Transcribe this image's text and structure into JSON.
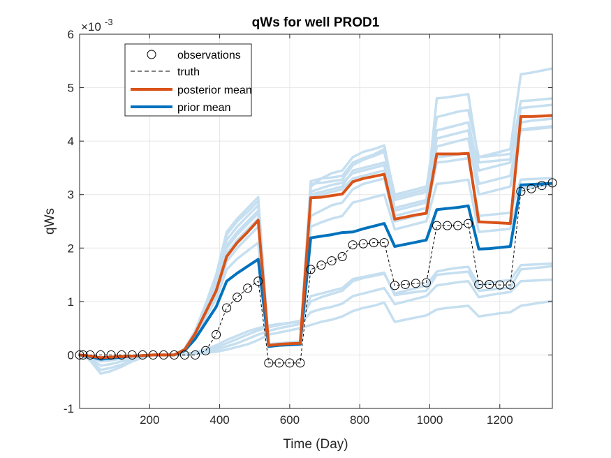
{
  "chart_data": {
    "type": "line",
    "title": "qWs for well PROD1",
    "xlabel": "Time (Day)",
    "ylabel": "qWs",
    "y_exponent_label": "×10",
    "y_exponent_power": "-3",
    "xlim": [
      0,
      1350
    ],
    "ylim": [
      -1,
      6
    ],
    "xticks": [
      200,
      400,
      600,
      800,
      1000,
      1200
    ],
    "yticks": [
      -1,
      0,
      1,
      2,
      3,
      4,
      5,
      6
    ],
    "grid": true,
    "legend_position": "top-left",
    "colors": {
      "ensemble": "#c6dff0",
      "posterior": "#d95319",
      "prior": "#0072bd",
      "observations": "#000000",
      "truth": "#000000"
    },
    "legend": [
      {
        "key": "observations",
        "label": "observations",
        "style": "marker"
      },
      {
        "key": "truth",
        "label": "truth",
        "style": "dashed"
      },
      {
        "key": "posterior",
        "label": "posterior mean",
        "style": "posterior"
      },
      {
        "key": "prior",
        "label": "prior mean",
        "style": "prior"
      }
    ],
    "x": [
      0,
      30,
      60,
      90,
      120,
      150,
      180,
      210,
      240,
      270,
      300,
      330,
      360,
      390,
      420,
      450,
      480,
      510,
      540,
      570,
      600,
      630,
      660,
      690,
      720,
      750,
      780,
      810,
      840,
      870,
      900,
      930,
      960,
      990,
      1020,
      1050,
      1080,
      1110,
      1140,
      1170,
      1200,
      1230,
      1260,
      1290,
      1320,
      1350
    ],
    "observations": {
      "x": [
        0,
        10,
        30,
        60,
        90,
        120,
        150,
        180,
        210,
        240,
        270,
        300,
        330,
        360,
        390,
        420,
        450,
        480,
        510,
        540,
        570,
        600,
        630,
        660,
        690,
        720,
        750,
        780,
        810,
        840,
        870,
        900,
        930,
        960,
        990,
        1020,
        1050,
        1080,
        1110,
        1140,
        1170,
        1200,
        1230,
        1260,
        1290,
        1320,
        1350
      ],
      "y": [
        0,
        0,
        0,
        0,
        0,
        0,
        0,
        0,
        0,
        0,
        0,
        0,
        0,
        0.08,
        0.38,
        0.88,
        1.08,
        1.25,
        1.38,
        -0.15,
        -0.15,
        -0.15,
        -0.15,
        1.6,
        1.68,
        1.76,
        1.84,
        2.06,
        2.08,
        2.1,
        2.1,
        1.3,
        1.32,
        1.34,
        1.35,
        2.42,
        2.42,
        2.42,
        2.46,
        1.32,
        1.32,
        1.31,
        1.31,
        3.06,
        3.11,
        3.17,
        3.22
      ]
    },
    "truth": [
      0,
      0,
      0,
      0,
      0,
      0,
      0,
      0,
      0,
      0,
      0,
      0,
      0.08,
      0.38,
      0.88,
      1.08,
      1.25,
      1.38,
      -0.15,
      -0.15,
      -0.15,
      -0.15,
      1.6,
      1.68,
      1.76,
      1.84,
      2.06,
      2.08,
      2.1,
      2.1,
      1.3,
      1.32,
      1.34,
      1.35,
      2.42,
      2.42,
      2.42,
      2.46,
      1.32,
      1.32,
      1.31,
      1.31,
      3.06,
      3.11,
      3.17,
      3.22
    ],
    "posterior_mean": [
      0,
      -0.02,
      -0.05,
      -0.04,
      -0.03,
      -0.02,
      -0.01,
      0,
      0,
      0,
      0.1,
      0.4,
      0.8,
      1.2,
      1.84,
      2.1,
      2.3,
      2.52,
      0.18,
      0.2,
      0.21,
      0.22,
      2.94,
      2.95,
      2.98,
      3.01,
      3.24,
      3.3,
      3.34,
      3.38,
      2.54,
      2.58,
      2.62,
      2.65,
      3.76,
      3.76,
      3.76,
      3.77,
      2.49,
      2.48,
      2.47,
      2.46,
      4.46,
      4.46,
      4.47,
      4.48
    ],
    "prior_mean": [
      0,
      -0.03,
      -0.08,
      -0.06,
      -0.04,
      -0.02,
      -0.01,
      0,
      0,
      0,
      0.08,
      0.3,
      0.6,
      0.9,
      1.38,
      1.53,
      1.66,
      1.79,
      0.16,
      0.18,
      0.19,
      0.2,
      2.19,
      2.22,
      2.25,
      2.29,
      2.3,
      2.36,
      2.41,
      2.46,
      2.03,
      2.07,
      2.11,
      2.15,
      2.72,
      2.74,
      2.76,
      2.79,
      1.98,
      1.99,
      2.01,
      2.03,
      3.18,
      3.19,
      3.2,
      3.21
    ],
    "ensemble": [
      {
        "values": [
          0,
          -0.1,
          -0.35,
          -0.3,
          -0.22,
          -0.12,
          -0.05,
          0,
          0,
          0,
          0,
          0.02,
          0.04,
          0.06,
          0.1,
          0.15,
          0.2,
          0.28,
          0.38,
          0.42,
          0.46,
          0.5,
          0.56,
          0.62,
          0.66,
          0.72,
          0.82,
          0.88,
          0.92,
          0.98,
          0.62,
          0.66,
          0.7,
          0.74,
          0.85,
          0.88,
          0.9,
          0.92,
          0.72,
          0.75,
          0.78,
          0.8,
          0.92,
          0.95,
          0.98,
          1.01
        ]
      },
      {
        "values": [
          0,
          -0.08,
          -0.28,
          -0.24,
          -0.18,
          -0.1,
          -0.04,
          0,
          0,
          0,
          0.01,
          0.03,
          0.06,
          0.1,
          0.16,
          0.22,
          0.3,
          0.38,
          0.45,
          0.5,
          0.54,
          0.58,
          0.8,
          0.86,
          0.9,
          0.96,
          1.1,
          1.15,
          1.2,
          1.25,
          0.95,
          1.0,
          1.05,
          1.1,
          1.3,
          1.33,
          1.36,
          1.38,
          1.08,
          1.12,
          1.15,
          1.18,
          1.38,
          1.39,
          1.4,
          1.41
        ]
      },
      {
        "values": [
          0,
          -0.06,
          -0.2,
          -0.17,
          -0.12,
          -0.07,
          -0.03,
          0,
          0,
          0,
          0.01,
          0.04,
          0.08,
          0.14,
          0.22,
          0.3,
          0.38,
          0.46,
          0.52,
          0.56,
          0.6,
          0.64,
          1.0,
          1.08,
          1.14,
          1.2,
          1.38,
          1.44,
          1.48,
          1.52,
          1.15,
          1.2,
          1.25,
          1.3,
          1.56,
          1.6,
          1.63,
          1.65,
          1.3,
          1.35,
          1.38,
          1.4,
          1.68,
          1.69,
          1.7,
          1.71
        ]
      },
      {
        "values": [
          0,
          -0.04,
          -0.12,
          -0.1,
          -0.07,
          -0.04,
          -0.02,
          0,
          0,
          0,
          0.02,
          0.05,
          0.1,
          0.18,
          0.28,
          0.36,
          0.44,
          0.5,
          0.55,
          0.58,
          0.6,
          0.62,
          1.1,
          1.15,
          1.2,
          1.25,
          1.42,
          1.46,
          1.5,
          1.54,
          1.12,
          1.15,
          1.18,
          1.2,
          1.5,
          1.52,
          1.54,
          1.56,
          1.2,
          1.22,
          1.24,
          1.26,
          1.6,
          1.62,
          1.64,
          1.66
        ]
      },
      {
        "values": [
          0,
          -0.02,
          -0.06,
          -0.05,
          -0.03,
          -0.02,
          -0.01,
          0,
          0,
          0,
          0.12,
          0.45,
          0.95,
          1.5,
          2.3,
          2.55,
          2.75,
          2.95,
          0.2,
          0.22,
          0.24,
          0.25,
          3.15,
          3.3,
          3.4,
          3.45,
          3.7,
          3.8,
          3.85,
          3.92,
          2.95,
          3.0,
          3.05,
          3.1,
          4.45,
          4.5,
          4.55,
          4.58,
          3.7,
          3.75,
          3.8,
          3.85,
          5.25,
          5.28,
          5.32,
          5.36
        ]
      },
      {
        "values": [
          0,
          -0.02,
          -0.06,
          -0.05,
          -0.03,
          -0.02,
          -0.01,
          0,
          0,
          0,
          0.11,
          0.42,
          0.9,
          1.4,
          2.15,
          2.4,
          2.6,
          2.8,
          0.2,
          0.21,
          0.22,
          0.24,
          3.2,
          3.22,
          3.25,
          3.28,
          3.55,
          3.65,
          3.72,
          3.8,
          2.9,
          2.95,
          3.0,
          3.05,
          4.2,
          4.25,
          4.3,
          4.35,
          3.45,
          3.5,
          3.55,
          3.6,
          4.62,
          4.64,
          4.66,
          4.68
        ]
      },
      {
        "values": [
          0,
          -0.02,
          -0.06,
          -0.05,
          -0.03,
          -0.02,
          -0.01,
          0,
          0,
          0,
          0.1,
          0.4,
          0.85,
          1.3,
          2.0,
          2.25,
          2.45,
          2.65,
          0.19,
          0.2,
          0.21,
          0.23,
          3.0,
          3.05,
          3.1,
          3.15,
          3.45,
          3.5,
          3.55,
          3.6,
          2.75,
          2.8,
          2.85,
          2.9,
          4.05,
          4.1,
          4.15,
          4.2,
          3.2,
          3.25,
          3.3,
          3.35,
          4.35,
          4.38,
          4.4,
          4.42
        ]
      },
      {
        "values": [
          0,
          -0.02,
          -0.06,
          -0.05,
          -0.03,
          -0.02,
          -0.01,
          0,
          0,
          0,
          0.1,
          0.38,
          0.8,
          1.25,
          1.9,
          2.15,
          2.35,
          2.55,
          0.18,
          0.2,
          0.21,
          0.22,
          2.95,
          3.0,
          3.05,
          3.1,
          3.3,
          3.35,
          3.4,
          3.45,
          2.6,
          2.65,
          2.7,
          2.75,
          3.9,
          3.95,
          4.0,
          4.05,
          3.0,
          3.05,
          3.1,
          3.15,
          4.22,
          4.24,
          4.26,
          4.28
        ]
      },
      {
        "values": [
          0,
          -0.02,
          -0.06,
          -0.05,
          -0.03,
          -0.02,
          -0.01,
          0,
          0,
          0,
          0.1,
          0.36,
          0.75,
          1.15,
          1.75,
          2.0,
          2.2,
          2.4,
          0.18,
          0.19,
          0.2,
          0.22,
          2.6,
          2.7,
          2.8,
          2.85,
          3.1,
          3.2,
          3.25,
          3.3,
          2.5,
          2.55,
          2.6,
          2.65,
          3.6,
          3.62,
          3.65,
          3.68,
          2.6,
          2.62,
          2.64,
          2.66,
          3.28,
          3.29,
          3.3,
          3.31
        ]
      },
      {
        "values": [
          0,
          -0.02,
          -0.06,
          -0.05,
          -0.03,
          -0.02,
          -0.01,
          0,
          0,
          0,
          0.09,
          0.33,
          0.7,
          1.05,
          1.6,
          1.8,
          1.95,
          2.1,
          0.17,
          0.18,
          0.19,
          0.21,
          2.4,
          2.48,
          2.55,
          2.6,
          2.85,
          2.9,
          2.95,
          3.0,
          2.35,
          2.4,
          2.45,
          2.5,
          3.2,
          3.22,
          3.25,
          3.28,
          2.3,
          2.32,
          2.34,
          2.36,
          3.12,
          3.14,
          3.16,
          3.18
        ]
      },
      {
        "values": [
          0,
          -0.02,
          -0.06,
          -0.05,
          -0.03,
          -0.02,
          -0.01,
          0,
          0,
          0,
          0.11,
          0.44,
          0.92,
          1.45,
          2.25,
          2.5,
          2.68,
          2.88,
          0.19,
          0.21,
          0.23,
          0.24,
          3.05,
          3.12,
          3.18,
          3.22,
          3.4,
          3.45,
          3.5,
          3.55,
          2.7,
          2.75,
          2.8,
          2.85,
          4.8,
          4.82,
          4.85,
          4.88,
          3.6,
          3.62,
          3.64,
          3.66,
          4.75,
          4.76,
          4.78,
          4.8
        ]
      },
      {
        "values": [
          0,
          -0.02,
          -0.06,
          -0.05,
          -0.03,
          -0.02,
          -0.01,
          0,
          0,
          0,
          0.1,
          0.4,
          0.85,
          1.32,
          2.05,
          2.3,
          2.5,
          2.7,
          0.2,
          0.21,
          0.22,
          0.23,
          3.25,
          3.3,
          3.32,
          3.35,
          3.6,
          3.68,
          3.75,
          3.85,
          3.0,
          3.05,
          3.1,
          3.15,
          3.7,
          3.72,
          3.75,
          3.78,
          3.7,
          3.72,
          3.74,
          3.76,
          4.2,
          4.22,
          4.24,
          4.26
        ]
      }
    ]
  }
}
